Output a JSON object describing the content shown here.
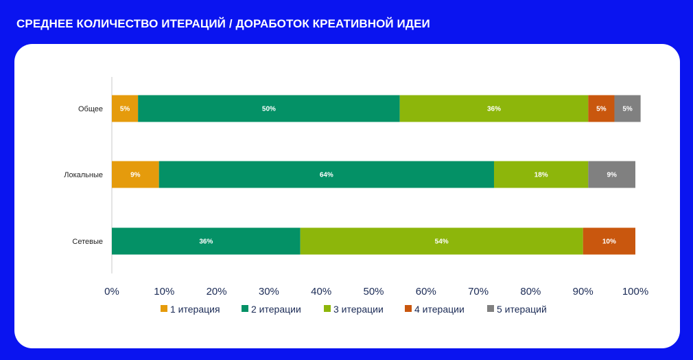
{
  "title": "СРЕДНЕЕ КОЛИЧЕСТВО ИТЕРАЦИЙ / ДОРАБОТОК КРЕАТИВНОЙ ИДЕИ",
  "chart_data": {
    "type": "bar",
    "orientation": "horizontal",
    "stacked": true,
    "categories": [
      "Общее",
      "Локальные",
      "Сетевые"
    ],
    "series": [
      {
        "name": "1 итерация",
        "color": "#e59b0c",
        "values": [
          5,
          9,
          0
        ],
        "labels": [
          "5%",
          "9%",
          ""
        ]
      },
      {
        "name": "2 итерации",
        "color": "#049166",
        "values": [
          50,
          64,
          36
        ],
        "labels": [
          "50%",
          "64%",
          "36%"
        ]
      },
      {
        "name": "3 итерации",
        "color": "#8db60b",
        "values": [
          36,
          18,
          54
        ],
        "labels": [
          "36%",
          "18%",
          "54%"
        ]
      },
      {
        "name": "4 итерации",
        "color": "#c9570e",
        "values": [
          5,
          0,
          10
        ],
        "labels": [
          "5%",
          "",
          "10%"
        ]
      },
      {
        "name": "5 итераций",
        "color": "#808080",
        "values": [
          5,
          9,
          0
        ],
        "labels": [
          "5%",
          "9%",
          ""
        ]
      }
    ],
    "xlim": [
      0,
      100
    ],
    "xticks": [
      "0%",
      "10%",
      "20%",
      "30%",
      "40%",
      "50%",
      "60%",
      "70%",
      "80%",
      "90%",
      "100%"
    ],
    "legend_position": "bottom",
    "grid": false
  }
}
